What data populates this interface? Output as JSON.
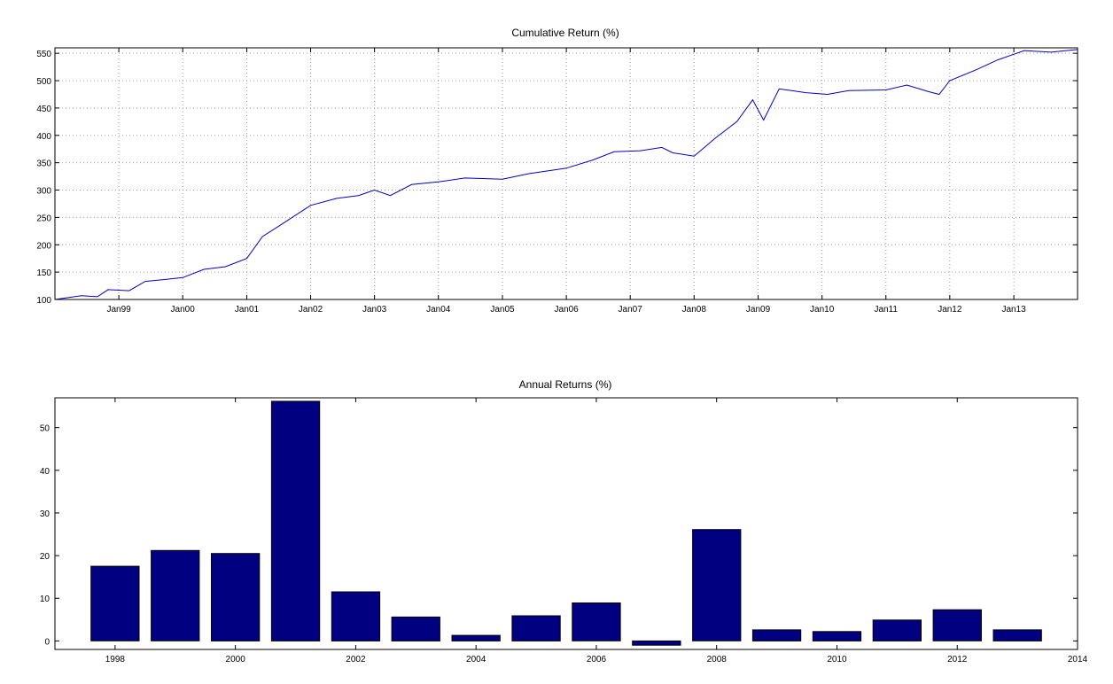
{
  "chart_data": [
    {
      "type": "line",
      "title": "Cumulative Return (%)",
      "xlabel": "",
      "ylabel": "",
      "grid": true,
      "xlim": [
        "1998-01-01",
        "2013-12-31"
      ],
      "ylim": [
        100,
        560
      ],
      "yticks": [
        100,
        150,
        200,
        250,
        300,
        350,
        400,
        450,
        500,
        550
      ],
      "xticks": [
        {
          "date": "1999-01-01",
          "label": "Jan99"
        },
        {
          "date": "2000-01-01",
          "label": "Jan00"
        },
        {
          "date": "2001-01-01",
          "label": "Jan01"
        },
        {
          "date": "2002-01-01",
          "label": "Jan02"
        },
        {
          "date": "2003-01-01",
          "label": "Jan03"
        },
        {
          "date": "2004-01-01",
          "label": "Jan04"
        },
        {
          "date": "2005-01-01",
          "label": "Jan05"
        },
        {
          "date": "2006-01-01",
          "label": "Jan06"
        },
        {
          "date": "2007-01-01",
          "label": "Jan07"
        },
        {
          "date": "2008-01-01",
          "label": "Jan08"
        },
        {
          "date": "2009-01-01",
          "label": "Jan09"
        },
        {
          "date": "2010-01-01",
          "label": "Jan10"
        },
        {
          "date": "2011-01-01",
          "label": "Jan11"
        },
        {
          "date": "2012-01-01",
          "label": "Jan12"
        },
        {
          "date": "2013-01-01",
          "label": "Jan13"
        }
      ],
      "series": [
        {
          "color": "#0000c8",
          "points": [
            [
              "1998-01-01",
              100
            ],
            [
              "1998-06-01",
              107
            ],
            [
              "1998-09-01",
              105
            ],
            [
              "1998-11-01",
              118
            ],
            [
              "1999-03-01",
              116
            ],
            [
              "1999-06-01",
              133
            ],
            [
              "1999-10-01",
              137
            ],
            [
              "2000-01-01",
              140
            ],
            [
              "2000-05-01",
              155
            ],
            [
              "2000-09-01",
              160
            ],
            [
              "2001-01-01",
              175
            ],
            [
              "2001-04-01",
              215
            ],
            [
              "2001-08-01",
              240
            ],
            [
              "2002-01-01",
              272
            ],
            [
              "2002-06-01",
              285
            ],
            [
              "2002-10-01",
              290
            ],
            [
              "2003-01-01",
              300
            ],
            [
              "2003-04-01",
              290
            ],
            [
              "2003-08-01",
              310
            ],
            [
              "2004-01-01",
              315
            ],
            [
              "2004-06-01",
              322
            ],
            [
              "2005-01-01",
              320
            ],
            [
              "2005-06-01",
              330
            ],
            [
              "2006-01-01",
              340
            ],
            [
              "2006-06-01",
              355
            ],
            [
              "2006-10-01",
              370
            ],
            [
              "2007-03-01",
              372
            ],
            [
              "2007-07-01",
              378
            ],
            [
              "2007-09-01",
              368
            ],
            [
              "2008-01-01",
              362
            ],
            [
              "2008-05-01",
              395
            ],
            [
              "2008-09-01",
              425
            ],
            [
              "2008-12-01",
              465
            ],
            [
              "2009-02-01",
              428
            ],
            [
              "2009-05-01",
              485
            ],
            [
              "2009-10-01",
              478
            ],
            [
              "2010-02-01",
              475
            ],
            [
              "2010-06-01",
              482
            ],
            [
              "2011-01-01",
              483
            ],
            [
              "2011-05-01",
              492
            ],
            [
              "2011-09-01",
              480
            ],
            [
              "2011-11-01",
              475
            ],
            [
              "2012-01-01",
              500
            ],
            [
              "2012-06-01",
              520
            ],
            [
              "2012-10-01",
              538
            ],
            [
              "2013-03-01",
              555
            ],
            [
              "2013-08-01",
              552
            ],
            [
              "2013-12-31",
              557
            ]
          ]
        }
      ]
    },
    {
      "type": "bar",
      "title": "Annual Returns (%)",
      "xlabel": "",
      "ylabel": "",
      "grid": false,
      "xlim": [
        1997,
        2014
      ],
      "ylim": [
        -2,
        57
      ],
      "yticks": [
        0,
        10,
        20,
        30,
        40,
        50
      ],
      "xticks": [
        1998,
        2000,
        2002,
        2004,
        2006,
        2008,
        2010,
        2012,
        2014
      ],
      "color": "#000080",
      "categories": [
        1998,
        1999,
        2000,
        2001,
        2002,
        2003,
        2004,
        2005,
        2006,
        2007,
        2008,
        2009,
        2010,
        2011,
        2012,
        2013
      ],
      "values": [
        17.5,
        21.2,
        20.5,
        56.2,
        11.5,
        5.6,
        1.3,
        5.9,
        8.9,
        -1.0,
        26.1,
        2.6,
        2.2,
        4.9,
        7.3,
        2.6
      ]
    }
  ]
}
